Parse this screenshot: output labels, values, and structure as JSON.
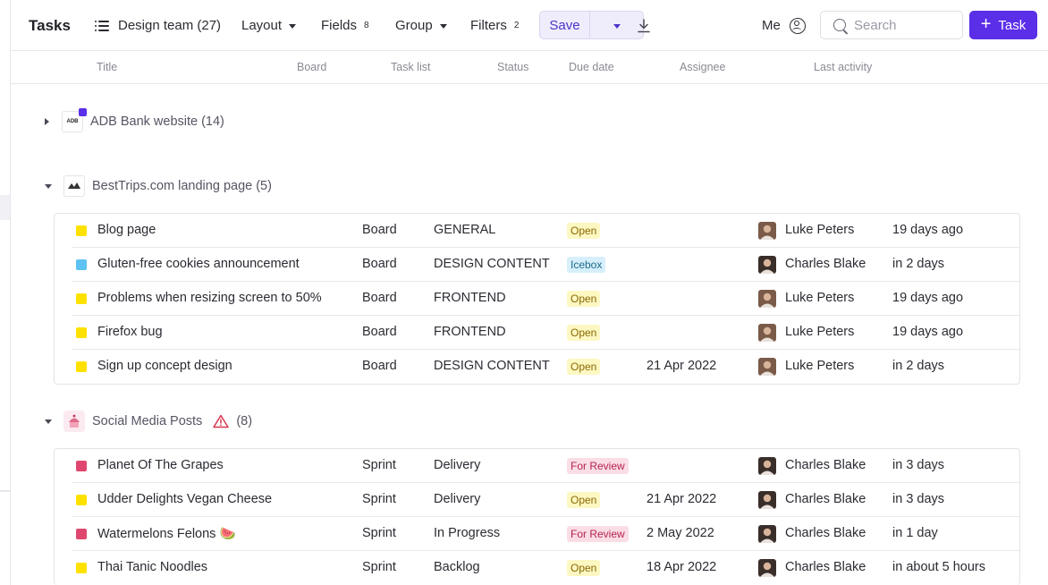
{
  "header": {
    "title": "Tasks",
    "view_label": "Design team (27)",
    "layout_label": "Layout",
    "fields_label": "Fields",
    "fields_count": "8",
    "group_label": "Group",
    "filters_label": "Filters",
    "filters_count": "2",
    "save_label": "Save",
    "me_label": "Me",
    "search_placeholder": "Search",
    "add_task_label": "Task"
  },
  "columns": [
    "Title",
    "Board",
    "Task list",
    "Status",
    "Due date",
    "Assignee",
    "Last activity"
  ],
  "colors": {
    "accent": "#5b2ee8",
    "yellow": "#ffe100",
    "blue": "#5ec2f2",
    "pink": "#e0476f",
    "open_bg": "#fdf7c2",
    "open_fg": "#8a6a00",
    "icebox_bg": "#d6effa",
    "icebox_fg": "#1f6c8e",
    "review_bg": "#fbdde6",
    "review_fg": "#b3244f"
  },
  "groups": [
    {
      "name": "ADB Bank website",
      "count": "(14)",
      "logo_text": "ADB",
      "expanded": false,
      "tasks": []
    },
    {
      "name": "BestTrips.com landing page",
      "count": "(5)",
      "expanded": true,
      "tasks": [
        {
          "color": "yellow",
          "title": "Blog page",
          "board": "Board",
          "list": "GENERAL",
          "status": "Open",
          "due": "",
          "assignee": "Luke Peters",
          "activity": "19 days ago"
        },
        {
          "color": "blue",
          "title": "Gluten-free cookies announcement",
          "board": "Board",
          "list": "DESIGN CONTENT",
          "status": "Icebox",
          "due": "",
          "assignee": "Charles Blake",
          "activity": "in 2 days"
        },
        {
          "color": "yellow",
          "title": "Problems when resizing screen to 50%",
          "board": "Board",
          "list": "FRONTEND",
          "status": "Open",
          "due": "",
          "assignee": "Luke Peters",
          "activity": "19 days ago"
        },
        {
          "color": "yellow",
          "title": "Firefox bug",
          "board": "Board",
          "list": "FRONTEND",
          "status": "Open",
          "due": "",
          "assignee": "Luke Peters",
          "activity": "19 days ago"
        },
        {
          "color": "yellow",
          "title": "Sign up concept design",
          "board": "Board",
          "list": "DESIGN CONTENT",
          "status": "Open",
          "due": "21 Apr 2022",
          "assignee": "Luke Peters",
          "activity": "in 2 days"
        }
      ]
    },
    {
      "name": "Social Media Posts",
      "count": "(8)",
      "expanded": true,
      "tasks": [
        {
          "color": "pink",
          "title": "Planet Of The Grapes",
          "board": "Sprint",
          "list": "Delivery",
          "status": "For Review",
          "due": "",
          "assignee": "Charles Blake",
          "activity": "in 3 days"
        },
        {
          "color": "yellow",
          "title": "Udder Delights Vegan Cheese",
          "board": "Sprint",
          "list": "Delivery",
          "status": "Open",
          "due": "21 Apr 2022",
          "assignee": "Charles Blake",
          "activity": "in 3 days"
        },
        {
          "color": "pink",
          "title": "Watermelons Felons 🍉",
          "board": "Sprint",
          "list": "In Progress",
          "status": "For Review",
          "due": "2 May 2022",
          "assignee": "Charles Blake",
          "activity": "in 1 day"
        },
        {
          "color": "yellow",
          "title": "Thai Tanic Noodles",
          "board": "Sprint",
          "list": "Backlog",
          "status": "Open",
          "due": "18 Apr 2022",
          "assignee": "Charles Blake",
          "activity": "in about 5 hours"
        }
      ]
    }
  ]
}
